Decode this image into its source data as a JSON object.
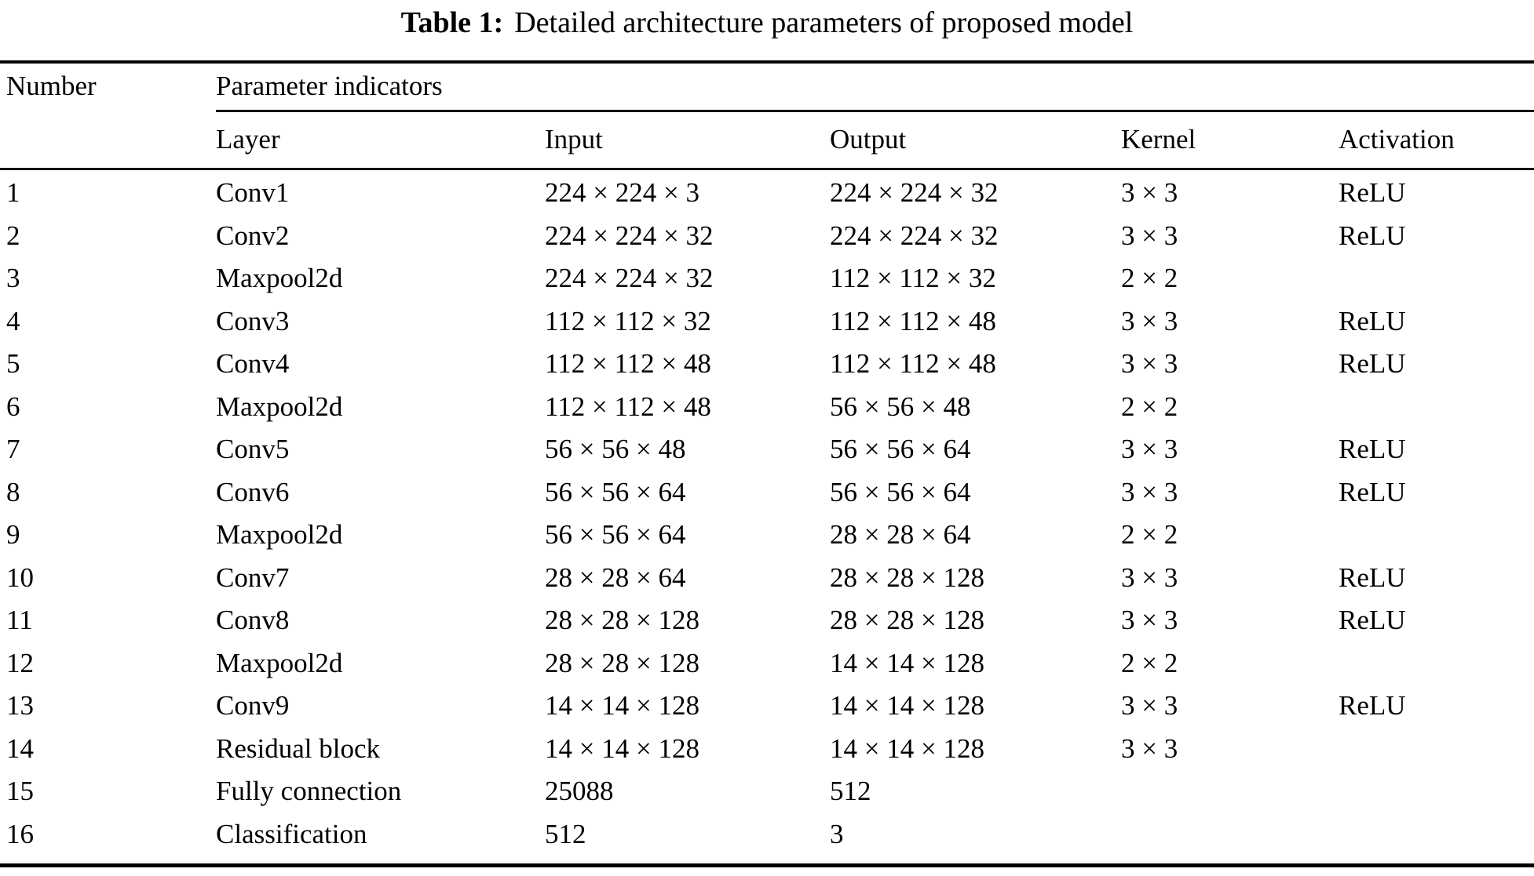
{
  "title": {
    "label": "Table 1:",
    "text": "Detailed architecture parameters of proposed model"
  },
  "table": {
    "number_header": "Number",
    "group_header": "Parameter indicators",
    "columns": [
      "Layer",
      "Input",
      "Output",
      "Kernel",
      "Activation"
    ],
    "rows": [
      {
        "number": "1",
        "layer": "Conv1",
        "input": "224 × 224 × 3",
        "output": "224 × 224 × 32",
        "kernel": "3 × 3",
        "activation": "ReLU"
      },
      {
        "number": "2",
        "layer": "Conv2",
        "input": "224 × 224 × 32",
        "output": "224 × 224 × 32",
        "kernel": "3 × 3",
        "activation": "ReLU"
      },
      {
        "number": "3",
        "layer": "Maxpool2d",
        "input": "224 × 224 × 32",
        "output": "112 × 112 × 32",
        "kernel": "2 × 2",
        "activation": ""
      },
      {
        "number": "4",
        "layer": "Conv3",
        "input": "112 × 112 × 32",
        "output": "112 × 112 × 48",
        "kernel": "3 × 3",
        "activation": "ReLU"
      },
      {
        "number": "5",
        "layer": "Conv4",
        "input": "112 × 112 × 48",
        "output": "112 × 112 × 48",
        "kernel": "3 × 3",
        "activation": "ReLU"
      },
      {
        "number": "6",
        "layer": "Maxpool2d",
        "input": "112 × 112 × 48",
        "output": "56 × 56 × 48",
        "kernel": "2 × 2",
        "activation": ""
      },
      {
        "number": "7",
        "layer": "Conv5",
        "input": "56 × 56 × 48",
        "output": "56 × 56 × 64",
        "kernel": "3 × 3",
        "activation": "ReLU"
      },
      {
        "number": "8",
        "layer": "Conv6",
        "input": "56 × 56 × 64",
        "output": "56 × 56 × 64",
        "kernel": "3 × 3",
        "activation": "ReLU"
      },
      {
        "number": "9",
        "layer": "Maxpool2d",
        "input": "56 × 56 × 64",
        "output": "28 × 28 × 64",
        "kernel": "2 × 2",
        "activation": ""
      },
      {
        "number": "10",
        "layer": "Conv7",
        "input": "28 × 28 × 64",
        "output": "28 × 28 × 128",
        "kernel": "3 × 3",
        "activation": "ReLU"
      },
      {
        "number": "11",
        "layer": "Conv8",
        "input": "28 × 28 × 128",
        "output": "28 × 28 × 128",
        "kernel": "3 × 3",
        "activation": "ReLU"
      },
      {
        "number": "12",
        "layer": "Maxpool2d",
        "input": "28 × 28 × 128",
        "output": "14 × 14 × 128",
        "kernel": "2 × 2",
        "activation": ""
      },
      {
        "number": "13",
        "layer": "Conv9",
        "input": "14 × 14 × 128",
        "output": "14 × 14 × 128",
        "kernel": "3 × 3",
        "activation": "ReLU"
      },
      {
        "number": "14",
        "layer": "Residual block",
        "input": "14 × 14 × 128",
        "output": "14 × 14 × 128",
        "kernel": "3 × 3",
        "activation": ""
      },
      {
        "number": "15",
        "layer": "Fully connection",
        "input": "25088",
        "output": "512",
        "kernel": "",
        "activation": ""
      },
      {
        "number": "16",
        "layer": "Classification",
        "input": "512",
        "output": "3",
        "kernel": "",
        "activation": ""
      }
    ]
  }
}
